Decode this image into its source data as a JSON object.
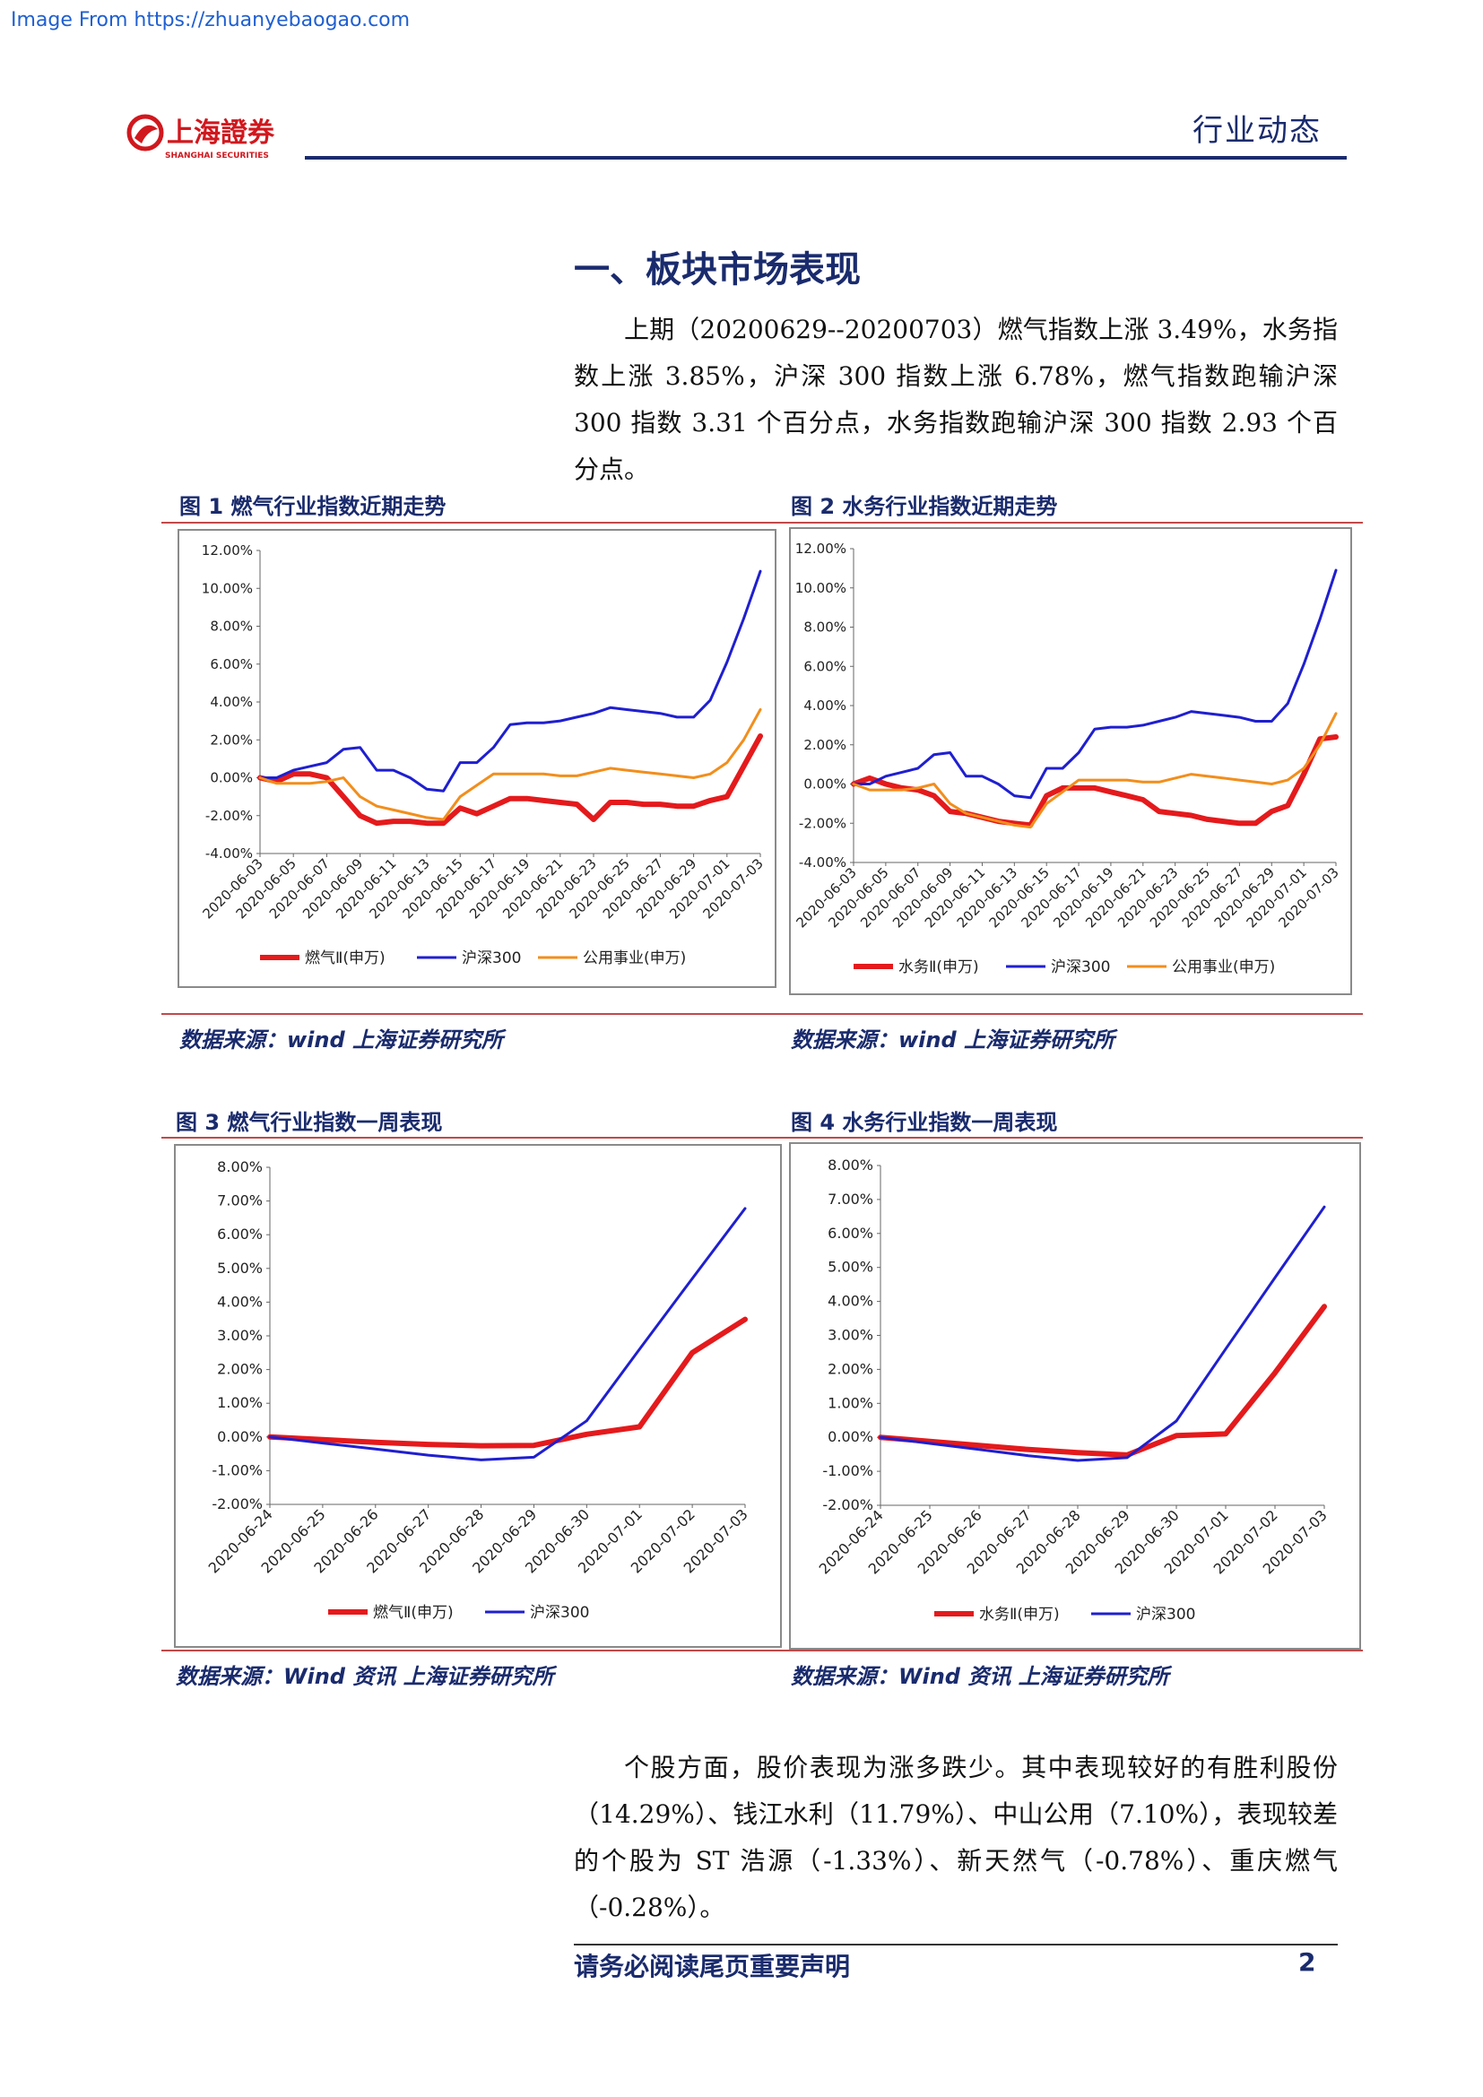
{
  "watermark": "Image From https://zhuanyebaogao.com",
  "header": {
    "logo_cn": "上海證券",
    "logo_en": "SHANGHAI SECURITIES",
    "tag": "行业动态"
  },
  "section_title": "一、板块市场表现",
  "paragraph1": "上期（20200629--20200703）燃气指数上涨 3.49%，水务指数上涨 3.85%，沪深 300 指数上涨 6.78%，燃气指数跑输沪深 300 指数 3.31 个百分点，水务指数跑输沪深 300 指数 2.93 个百分点。",
  "paragraph2": "个股方面，股价表现为涨多跌少。其中表现较好的有胜利股份（14.29%）、钱江水利（11.79%）、中山公用（7.10%），表现较差的个股为 ST 浩源（-1.33%）、新天然气（-0.78%）、重庆燃气（-0.28%）。",
  "figures": {
    "fig1_title": "图 1 燃气行业指数近期走势",
    "fig2_title": "图 2 水务行业指数近期走势",
    "fig3_title": "图  3  燃气行业指数一周表现",
    "fig4_title": "图  4  水务行业指数一周表现",
    "source_top": "数据来源：wind 上海证券研究所",
    "source_bottom": "数据来源：Wind 资讯  上海证券研究所"
  },
  "footer": {
    "text": "请务必阅读尾页重要声明",
    "page": "2"
  },
  "colors": {
    "red": "#e41a1c",
    "blue": "#1f1fd0",
    "orange": "#f28e1c",
    "navy": "#1a2b6d"
  },
  "chart_data": [
    {
      "type": "line",
      "ylim": [
        -0.04,
        0.12
      ],
      "yticks": [
        "-4.00%",
        "-2.00%",
        "0.00%",
        "2.00%",
        "4.00%",
        "6.00%",
        "8.00%",
        "10.00%",
        "12.00%"
      ],
      "xticks": [
        "2020-06-03",
        "2020-06-05",
        "2020-06-07",
        "2020-06-09",
        "2020-06-11",
        "2020-06-13",
        "2020-06-15",
        "2020-06-17",
        "2020-06-19",
        "2020-06-21",
        "2020-06-23",
        "2020-06-25",
        "2020-06-27",
        "2020-06-29",
        "2020-07-01",
        "2020-07-03"
      ],
      "x": [
        0,
        1,
        2,
        3,
        4,
        5,
        6,
        7,
        8,
        9,
        10,
        11,
        12,
        13,
        14,
        15,
        16,
        17,
        18,
        19,
        20,
        21,
        22,
        23,
        24,
        25,
        26,
        27,
        28,
        29,
        30
      ],
      "legend_position": "bottom",
      "series": [
        {
          "name": "燃气Ⅱ(申万)",
          "color": "red",
          "values": [
            0,
            -0.002,
            0.002,
            0.002,
            0,
            -0.01,
            -0.02,
            -0.024,
            -0.023,
            -0.023,
            -0.024,
            -0.024,
            -0.016,
            -0.019,
            -0.015,
            -0.011,
            -0.011,
            -0.012,
            -0.013,
            -0.014,
            -0.022,
            -0.013,
            -0.013,
            -0.014,
            -0.014,
            -0.015,
            -0.015,
            -0.012,
            -0.01,
            0.006,
            0.022
          ]
        },
        {
          "name": "沪深300",
          "color": "blue",
          "values": [
            0,
            0,
            0.004,
            0.006,
            0.008,
            0.015,
            0.016,
            0.004,
            0.004,
            0,
            -0.006,
            -0.007,
            0.008,
            0.008,
            0.016,
            0.028,
            0.029,
            0.029,
            0.03,
            0.032,
            0.034,
            0.037,
            0.036,
            0.035,
            0.034,
            0.032,
            0.032,
            0.041,
            0.061,
            0.084,
            0.109
          ]
        },
        {
          "name": "公用事业(申万)",
          "color": "orange",
          "values": [
            0,
            -0.003,
            -0.003,
            -0.003,
            -0.002,
            0,
            -0.01,
            -0.015,
            -0.017,
            -0.019,
            -0.021,
            -0.022,
            -0.01,
            -0.004,
            0.002,
            0.002,
            0.002,
            0.002,
            0.001,
            0.001,
            0.003,
            0.005,
            0.004,
            0.003,
            0.002,
            0.001,
            0,
            0.002,
            0.008,
            0.02,
            0.036
          ]
        }
      ]
    },
    {
      "type": "line",
      "ylim": [
        -0.04,
        0.12
      ],
      "yticks": [
        "-4.00%",
        "-2.00%",
        "0.00%",
        "2.00%",
        "4.00%",
        "6.00%",
        "8.00%",
        "10.00%",
        "12.00%"
      ],
      "xticks": [
        "2020-06-03",
        "2020-06-05",
        "2020-06-07",
        "2020-06-09",
        "2020-06-11",
        "2020-06-13",
        "2020-06-15",
        "2020-06-17",
        "2020-06-19",
        "2020-06-21",
        "2020-06-23",
        "2020-06-25",
        "2020-06-27",
        "2020-06-29",
        "2020-07-01",
        "2020-07-03"
      ],
      "x": [
        0,
        1,
        2,
        3,
        4,
        5,
        6,
        7,
        8,
        9,
        10,
        11,
        12,
        13,
        14,
        15,
        16,
        17,
        18,
        19,
        20,
        21,
        22,
        23,
        24,
        25,
        26,
        27,
        28,
        29,
        30
      ],
      "legend_position": "bottom",
      "series": [
        {
          "name": "水务Ⅱ(申万)",
          "color": "red",
          "values": [
            0,
            0.003,
            0,
            -0.002,
            -0.003,
            -0.006,
            -0.014,
            -0.015,
            -0.017,
            -0.019,
            -0.02,
            -0.021,
            -0.006,
            -0.002,
            -0.002,
            -0.002,
            -0.004,
            -0.006,
            -0.008,
            -0.014,
            -0.015,
            -0.016,
            -0.018,
            -0.019,
            -0.02,
            -0.02,
            -0.014,
            -0.011,
            0.005,
            0.023,
            0.024
          ]
        },
        {
          "name": "沪深300",
          "color": "blue",
          "values": [
            0,
            0,
            0.004,
            0.006,
            0.008,
            0.015,
            0.016,
            0.004,
            0.004,
            0,
            -0.006,
            -0.007,
            0.008,
            0.008,
            0.016,
            0.028,
            0.029,
            0.029,
            0.03,
            0.032,
            0.034,
            0.037,
            0.036,
            0.035,
            0.034,
            0.032,
            0.032,
            0.041,
            0.061,
            0.084,
            0.109
          ]
        },
        {
          "name": "公用事业(申万)",
          "color": "orange",
          "values": [
            0,
            -0.003,
            -0.003,
            -0.003,
            -0.002,
            0,
            -0.01,
            -0.015,
            -0.017,
            -0.019,
            -0.021,
            -0.022,
            -0.01,
            -0.004,
            0.002,
            0.002,
            0.002,
            0.002,
            0.001,
            0.001,
            0.003,
            0.005,
            0.004,
            0.003,
            0.002,
            0.001,
            0,
            0.002,
            0.008,
            0.02,
            0.036
          ]
        }
      ]
    },
    {
      "type": "line",
      "ylim": [
        -0.02,
        0.08
      ],
      "yticks": [
        "-2.00%",
        "-1.00%",
        "0.00%",
        "1.00%",
        "2.00%",
        "3.00%",
        "4.00%",
        "5.00%",
        "6.00%",
        "7.00%",
        "8.00%"
      ],
      "xticks": [
        "2020-06-24",
        "2020-06-25",
        "2020-06-26",
        "2020-06-27",
        "2020-06-28",
        "2020-06-29",
        "2020-06-30",
        "2020-07-01",
        "2020-07-02",
        "2020-07-03"
      ],
      "x": [
        0,
        1,
        2,
        3,
        4,
        5,
        6,
        7,
        8,
        9
      ],
      "legend_position": "bottom",
      "series": [
        {
          "name": "燃气Ⅱ(申万)",
          "color": "red",
          "values": [
            0,
            -0.0008,
            -0.0016,
            -0.0022,
            -0.0026,
            -0.0025,
            0.0008,
            0.003,
            0.025,
            0.0349
          ]
        },
        {
          "name": "沪深300",
          "color": "blue",
          "values": [
            0,
            -0.0018,
            -0.0036,
            -0.0054,
            -0.0068,
            -0.006,
            0.0048,
            0.026,
            0.047,
            0.0678
          ]
        }
      ]
    },
    {
      "type": "line",
      "ylim": [
        -0.02,
        0.08
      ],
      "yticks": [
        "-2.00%",
        "-1.00%",
        "0.00%",
        "1.00%",
        "2.00%",
        "3.00%",
        "4.00%",
        "5.00%",
        "6.00%",
        "7.00%",
        "8.00%"
      ],
      "xticks": [
        "2020-06-24",
        "2020-06-25",
        "2020-06-26",
        "2020-06-27",
        "2020-06-28",
        "2020-06-29",
        "2020-06-30",
        "2020-07-01",
        "2020-07-02",
        "2020-07-03"
      ],
      "x": [
        0,
        1,
        2,
        3,
        4,
        5,
        6,
        7,
        8,
        9
      ],
      "legend_position": "bottom",
      "series": [
        {
          "name": "水务Ⅱ(申万)",
          "color": "red",
          "values": [
            0,
            -0.0012,
            -0.0024,
            -0.0036,
            -0.0045,
            -0.0052,
            0.0005,
            0.001,
            0.019,
            0.0385
          ]
        },
        {
          "name": "沪深300",
          "color": "blue",
          "values": [
            0,
            -0.0018,
            -0.0036,
            -0.0054,
            -0.0068,
            -0.006,
            0.0048,
            0.026,
            0.047,
            0.0678
          ]
        }
      ]
    }
  ]
}
